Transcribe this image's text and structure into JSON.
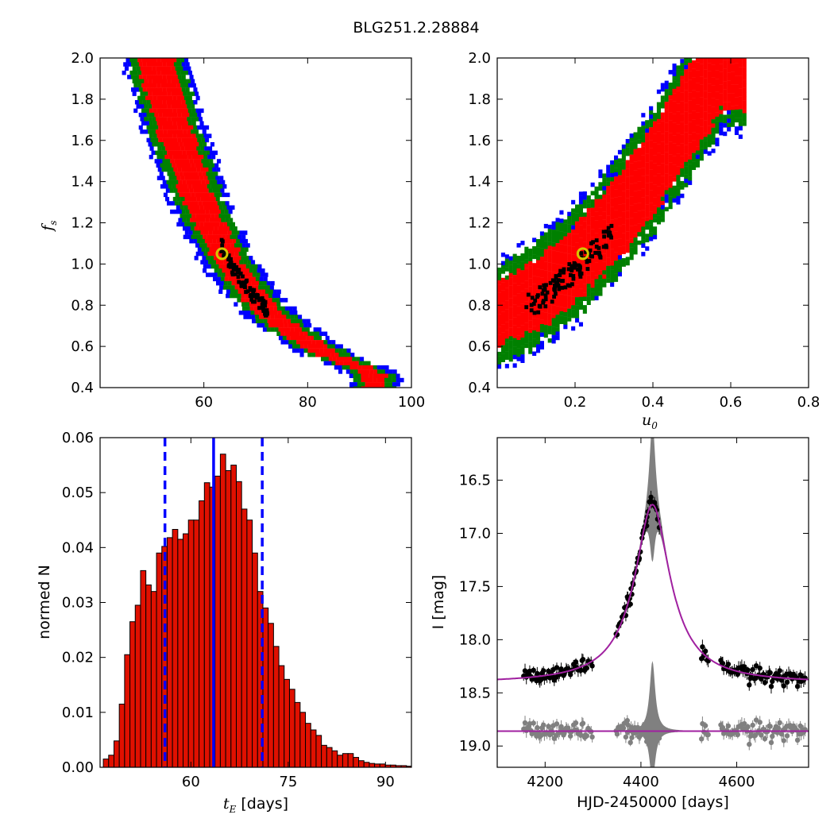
{
  "figure_title": "BLG251.2.28884",
  "colors": {
    "inner": "#ff0000",
    "middle": "#008000",
    "outer": "#0000ff",
    "best_fit_marker": "#d4c800",
    "hist_bar": "#e01000",
    "dashed_line": "#0000ff",
    "model_line": "#a020a0",
    "data_points": "#000000",
    "residuals": "#808080"
  },
  "chart_data": [
    {
      "type": "heatmap",
      "panel": "top-left",
      "xlim": [
        40,
        100
      ],
      "ylim": [
        0.4,
        2.0
      ],
      "xticks": [
        "60",
        "80",
        "100"
      ],
      "yticks": [
        "0.4",
        "0.6",
        "0.8",
        "1.0",
        "1.2",
        "1.4",
        "1.6",
        "1.8",
        "2.0"
      ],
      "ylabel_main": "f",
      "ylabel_sub": "s",
      "best_fit": {
        "x": 63.5,
        "y": 1.05
      },
      "band_center": [
        [
          50.5,
          2.0
        ],
        [
          55,
          1.6
        ],
        [
          60,
          1.25
        ],
        [
          65,
          1.0
        ],
        [
          70,
          0.83
        ],
        [
          75,
          0.71
        ],
        [
          80,
          0.62
        ],
        [
          85,
          0.55
        ],
        [
          90,
          0.5
        ],
        [
          93,
          0.46
        ]
      ]
    },
    {
      "type": "heatmap",
      "panel": "top-right",
      "xlim": [
        0.0,
        0.8
      ],
      "ylim": [
        0.4,
        2.0
      ],
      "xticks": [
        "0.2",
        "0.4",
        "0.6",
        "0.8"
      ],
      "yticks": [
        "0.4",
        "0.6",
        "0.8",
        "1.0",
        "1.2",
        "1.4",
        "1.6",
        "1.8",
        "2.0"
      ],
      "xlabel_main": "u",
      "xlabel_sub": "0",
      "best_fit": {
        "x": 0.22,
        "y": 1.05
      },
      "band_center": [
        [
          0.0,
          0.75
        ],
        [
          0.1,
          0.85
        ],
        [
          0.2,
          1.0
        ],
        [
          0.3,
          1.2
        ],
        [
          0.4,
          1.45
        ],
        [
          0.5,
          1.75
        ],
        [
          0.58,
          2.0
        ]
      ]
    },
    {
      "type": "bar",
      "panel": "bottom-left",
      "xlim": [
        46,
        94
      ],
      "ylim": [
        0.0,
        0.06
      ],
      "xticks": [
        "60",
        "75",
        "90"
      ],
      "yticks": [
        "0.00",
        "0.01",
        "0.02",
        "0.03",
        "0.04",
        "0.05",
        "0.06"
      ],
      "ylabel": "normed N",
      "xlabel_main": "t",
      "xlabel_sub": "E",
      "xlabel_unit": " [days]",
      "bin_start": 46.5,
      "bin_width": 0.82,
      "values": [
        0.0015,
        0.0022,
        0.0048,
        0.0115,
        0.0205,
        0.0265,
        0.0295,
        0.0358,
        0.0332,
        0.032,
        0.039,
        0.0402,
        0.0418,
        0.0433,
        0.0415,
        0.0425,
        0.045,
        0.045,
        0.0485,
        0.0518,
        0.051,
        0.053,
        0.057,
        0.054,
        0.055,
        0.052,
        0.047,
        0.045,
        0.039,
        0.032,
        0.029,
        0.0262,
        0.022,
        0.0185,
        0.016,
        0.0142,
        0.0118,
        0.01,
        0.008,
        0.0068,
        0.0058,
        0.004,
        0.0036,
        0.003,
        0.0022,
        0.0025,
        0.0025,
        0.0018,
        0.0012,
        0.0009,
        0.0007,
        0.0006,
        0.0006,
        0.0004,
        0.0004,
        0.0003,
        0.0003,
        0.0002
      ],
      "median": 63.5,
      "dashed": [
        56.0,
        71.0
      ]
    },
    {
      "type": "scatter",
      "panel": "bottom-right",
      "xlim": [
        4100,
        4750
      ],
      "ylim": [
        19.2,
        16.1
      ],
      "xticks": [
        "4200",
        "4400",
        "4600"
      ],
      "yticks": [
        "16.5",
        "17.0",
        "17.5",
        "18.0",
        "18.5",
        "19.0"
      ],
      "ylabel": "I [mag]",
      "xlabel": "HJD-2450000 [days]",
      "model": {
        "t0": 4424,
        "baseline": 18.41,
        "peak": 16.73,
        "tau": 31,
        "residual_level": 18.86
      },
      "band_width_peak": 1.2,
      "data_range": [
        4155,
        4745
      ]
    }
  ]
}
